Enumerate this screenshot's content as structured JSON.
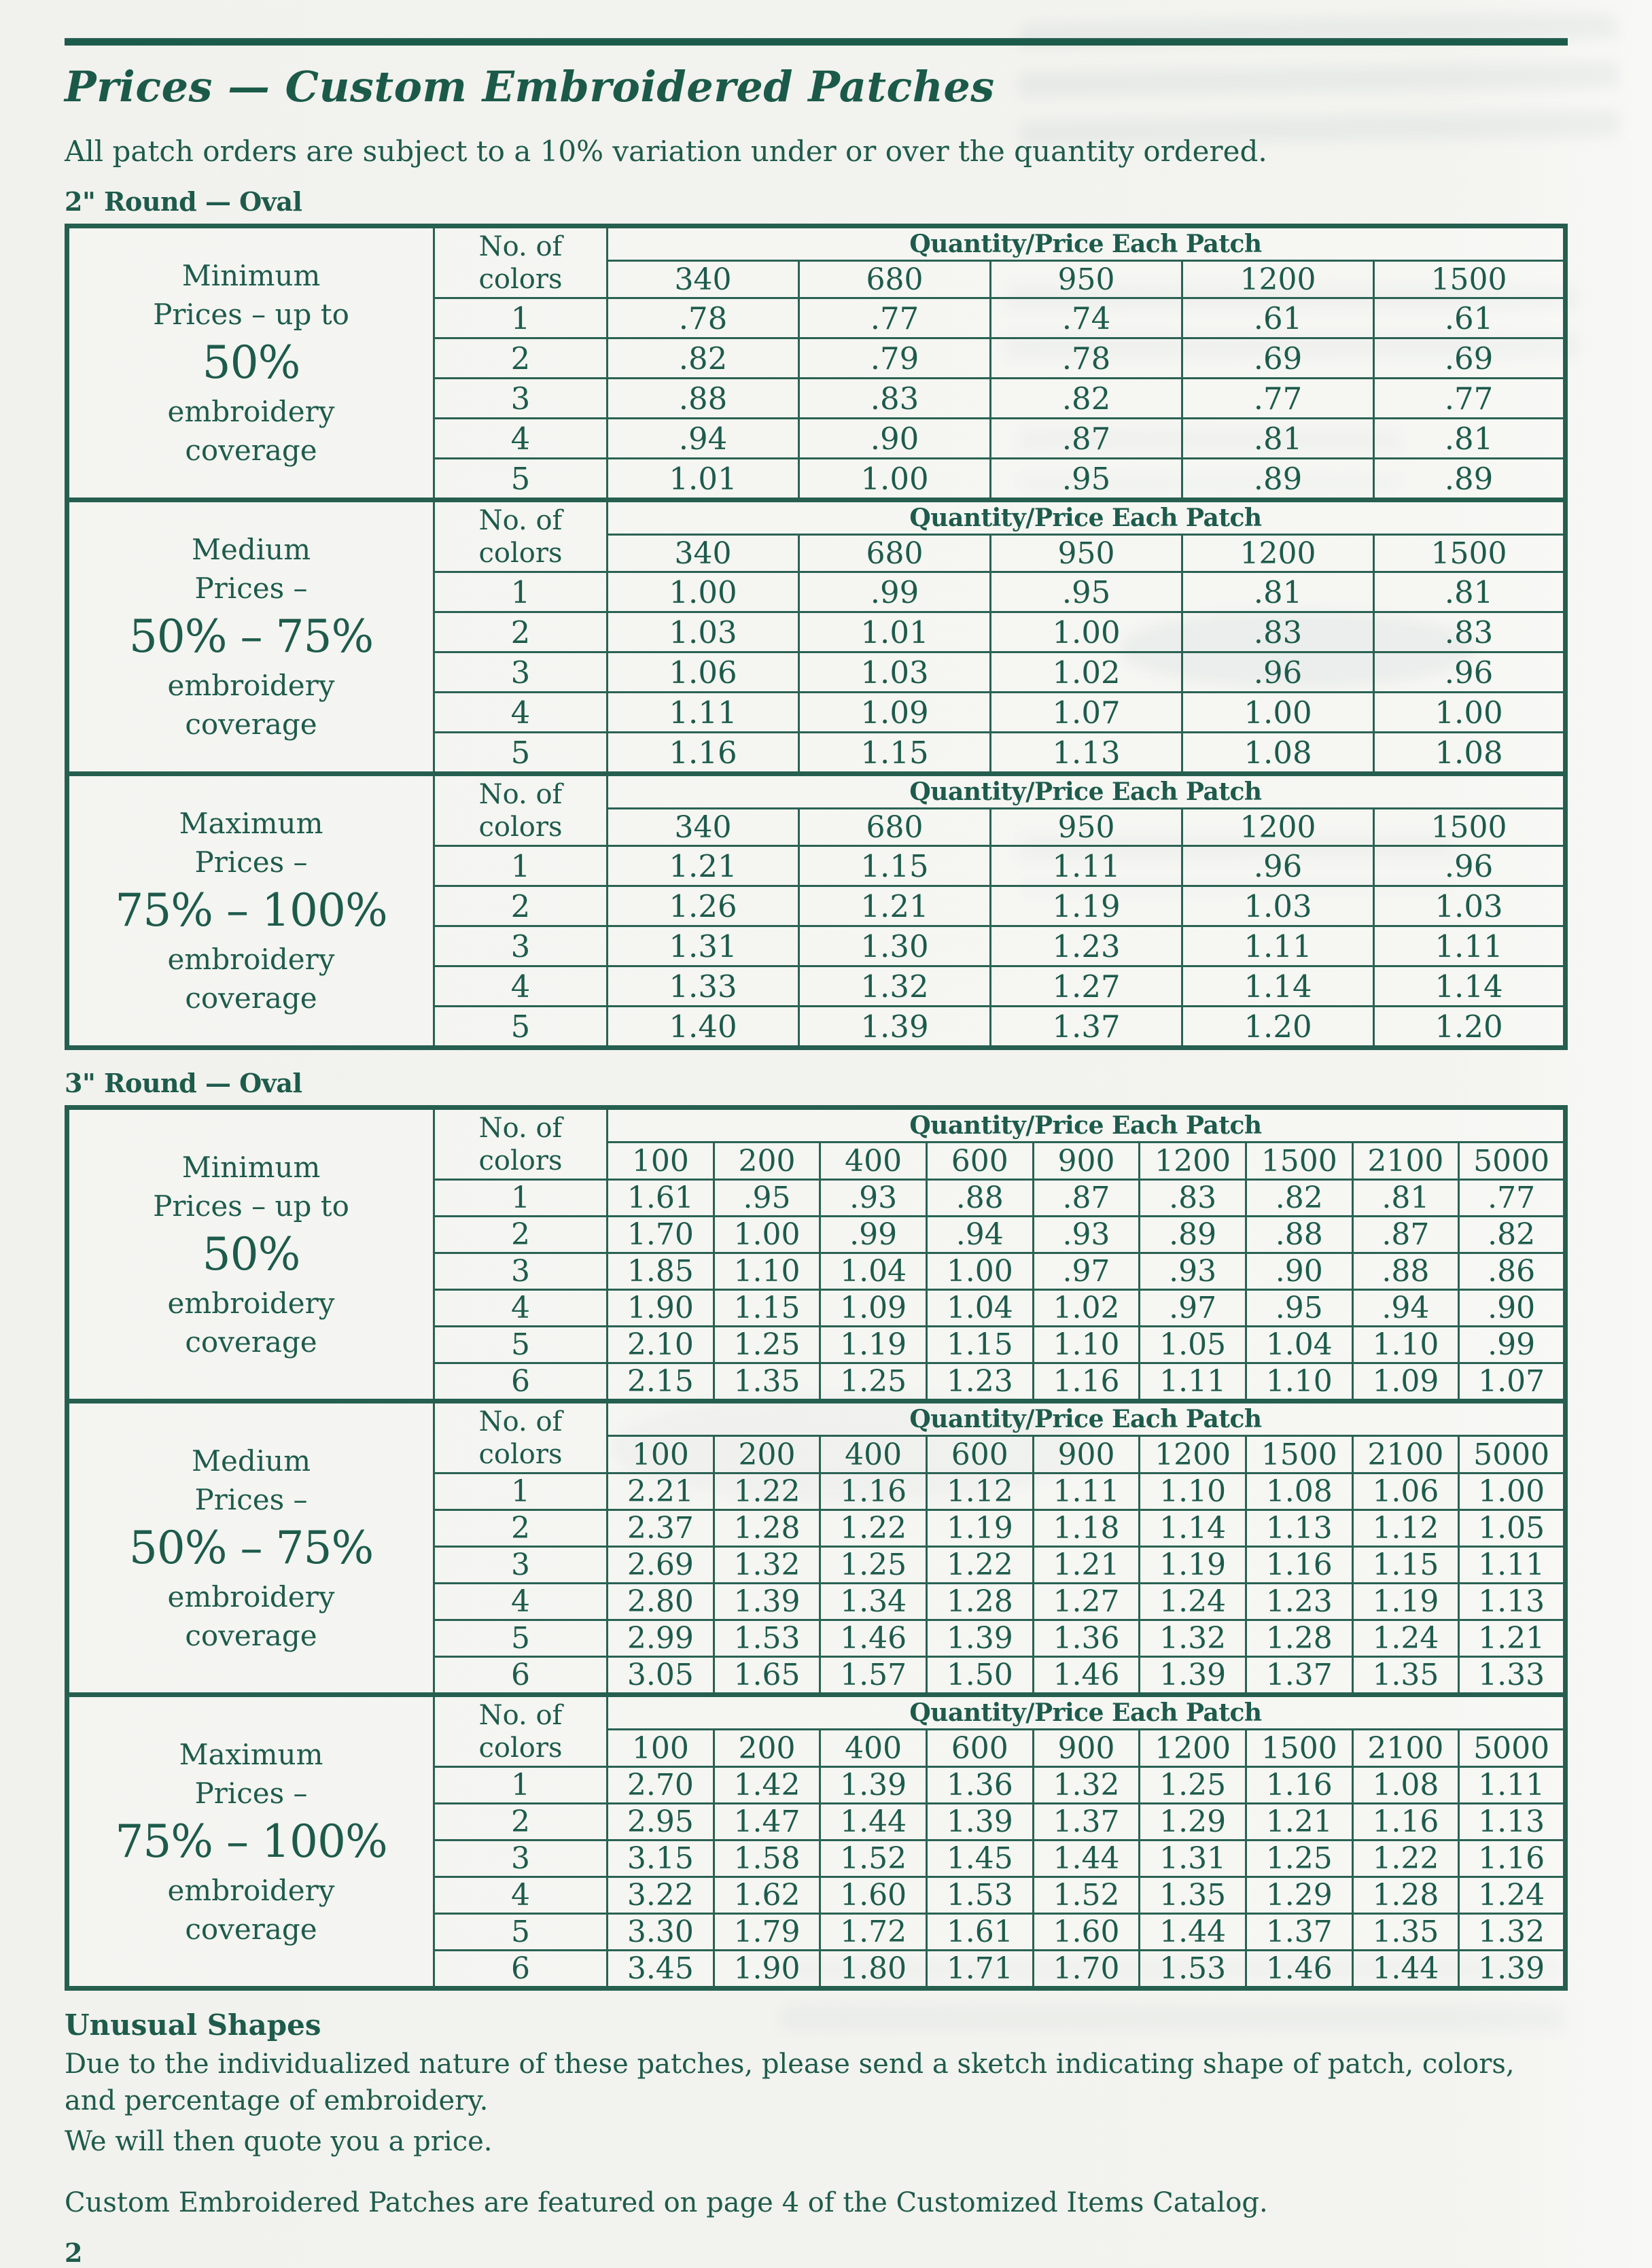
{
  "page": {
    "title": "Prices — Custom Embroidered Patches",
    "subtitle": "All patch orders are subject to a 10% variation under or over the quantity ordered.",
    "page_number": "2"
  },
  "footer": {
    "heading": "Unusual Shapes",
    "body_line1": "Due to the individualized nature of these patches, please send a sketch indicating shape of patch, colors, and percentage of embroidery.",
    "body_line2": "We will then quote you a price.",
    "note": "Custom Embroidered Patches are featured on page 4 of the Customized Items Catalog."
  },
  "colors": {
    "ink_green": "#1d5b4b",
    "border_green": "#2a6253",
    "paper": "#f3f3ef"
  },
  "chart_data": [
    {
      "type": "table",
      "title": "2\" Round — Oval",
      "colors_header": [
        "No. of",
        "colors"
      ],
      "quantity_header": "Quantity/Price Each Patch",
      "quantities": [
        "340",
        "680",
        "950",
        "1200",
        "1500"
      ],
      "tiers": [
        {
          "label_top": [
            "Minimum",
            "Prices – up to"
          ],
          "label_big": "50%",
          "label_bottom": [
            "embroidery",
            "coverage"
          ],
          "rows": [
            {
              "colors": "1",
              "prices": [
                ".78",
                ".77",
                ".74",
                ".61",
                ".61"
              ]
            },
            {
              "colors": "2",
              "prices": [
                ".82",
                ".79",
                ".78",
                ".69",
                ".69"
              ]
            },
            {
              "colors": "3",
              "prices": [
                ".88",
                ".83",
                ".82",
                ".77",
                ".77"
              ]
            },
            {
              "colors": "4",
              "prices": [
                ".94",
                ".90",
                ".87",
                ".81",
                ".81"
              ]
            },
            {
              "colors": "5",
              "prices": [
                "1.01",
                "1.00",
                ".95",
                ".89",
                ".89"
              ]
            }
          ]
        },
        {
          "label_top": [
            "Medium",
            "Prices –"
          ],
          "label_big": "50% – 75%",
          "label_bottom": [
            "embroidery",
            "coverage"
          ],
          "rows": [
            {
              "colors": "1",
              "prices": [
                "1.00",
                ".99",
                ".95",
                ".81",
                ".81"
              ]
            },
            {
              "colors": "2",
              "prices": [
                "1.03",
                "1.01",
                "1.00",
                ".83",
                ".83"
              ]
            },
            {
              "colors": "3",
              "prices": [
                "1.06",
                "1.03",
                "1.02",
                ".96",
                ".96"
              ]
            },
            {
              "colors": "4",
              "prices": [
                "1.11",
                "1.09",
                "1.07",
                "1.00",
                "1.00"
              ]
            },
            {
              "colors": "5",
              "prices": [
                "1.16",
                "1.15",
                "1.13",
                "1.08",
                "1.08"
              ]
            }
          ]
        },
        {
          "label_top": [
            "Maximum",
            "Prices –"
          ],
          "label_big": "75% – 100%",
          "label_bottom": [
            "embroidery",
            "coverage"
          ],
          "rows": [
            {
              "colors": "1",
              "prices": [
                "1.21",
                "1.15",
                "1.11",
                ".96",
                ".96"
              ]
            },
            {
              "colors": "2",
              "prices": [
                "1.26",
                "1.21",
                "1.19",
                "1.03",
                "1.03"
              ]
            },
            {
              "colors": "3",
              "prices": [
                "1.31",
                "1.30",
                "1.23",
                "1.11",
                "1.11"
              ]
            },
            {
              "colors": "4",
              "prices": [
                "1.33",
                "1.32",
                "1.27",
                "1.14",
                "1.14"
              ]
            },
            {
              "colors": "5",
              "prices": [
                "1.40",
                "1.39",
                "1.37",
                "1.20",
                "1.20"
              ]
            }
          ]
        }
      ]
    },
    {
      "type": "table",
      "title": "3\" Round — Oval",
      "colors_header": [
        "No. of",
        "colors"
      ],
      "quantity_header": "Quantity/Price Each Patch",
      "quantities": [
        "100",
        "200",
        "400",
        "600",
        "900",
        "1200",
        "1500",
        "2100",
        "5000"
      ],
      "tiers": [
        {
          "label_top": [
            "Minimum",
            "Prices – up to"
          ],
          "label_big": "50%",
          "label_bottom": [
            "embroidery",
            "coverage"
          ],
          "rows": [
            {
              "colors": "1",
              "prices": [
                "1.61",
                ".95",
                ".93",
                ".88",
                ".87",
                ".83",
                ".82",
                ".81",
                ".77"
              ]
            },
            {
              "colors": "2",
              "prices": [
                "1.70",
                "1.00",
                ".99",
                ".94",
                ".93",
                ".89",
                ".88",
                ".87",
                ".82"
              ]
            },
            {
              "colors": "3",
              "prices": [
                "1.85",
                "1.10",
                "1.04",
                "1.00",
                ".97",
                ".93",
                ".90",
                ".88",
                ".86"
              ]
            },
            {
              "colors": "4",
              "prices": [
                "1.90",
                "1.15",
                "1.09",
                "1.04",
                "1.02",
                ".97",
                ".95",
                ".94",
                ".90"
              ]
            },
            {
              "colors": "5",
              "prices": [
                "2.10",
                "1.25",
                "1.19",
                "1.15",
                "1.10",
                "1.05",
                "1.04",
                "1.10",
                ".99"
              ]
            },
            {
              "colors": "6",
              "prices": [
                "2.15",
                "1.35",
                "1.25",
                "1.23",
                "1.16",
                "1.11",
                "1.10",
                "1.09",
                "1.07"
              ]
            }
          ]
        },
        {
          "label_top": [
            "Medium",
            "Prices –"
          ],
          "label_big": "50% – 75%",
          "label_bottom": [
            "embroidery",
            "coverage"
          ],
          "rows": [
            {
              "colors": "1",
              "prices": [
                "2.21",
                "1.22",
                "1.16",
                "1.12",
                "1.11",
                "1.10",
                "1.08",
                "1.06",
                "1.00"
              ]
            },
            {
              "colors": "2",
              "prices": [
                "2.37",
                "1.28",
                "1.22",
                "1.19",
                "1.18",
                "1.14",
                "1.13",
                "1.12",
                "1.05"
              ]
            },
            {
              "colors": "3",
              "prices": [
                "2.69",
                "1.32",
                "1.25",
                "1.22",
                "1.21",
                "1.19",
                "1.16",
                "1.15",
                "1.11"
              ]
            },
            {
              "colors": "4",
              "prices": [
                "2.80",
                "1.39",
                "1.34",
                "1.28",
                "1.27",
                "1.24",
                "1.23",
                "1.19",
                "1.13"
              ]
            },
            {
              "colors": "5",
              "prices": [
                "2.99",
                "1.53",
                "1.46",
                "1.39",
                "1.36",
                "1.32",
                "1.28",
                "1.24",
                "1.21"
              ]
            },
            {
              "colors": "6",
              "prices": [
                "3.05",
                "1.65",
                "1.57",
                "1.50",
                "1.46",
                "1.39",
                "1.37",
                "1.35",
                "1.33"
              ]
            }
          ]
        },
        {
          "label_top": [
            "Maximum",
            "Prices –"
          ],
          "label_big": "75% – 100%",
          "label_bottom": [
            "embroidery",
            "coverage"
          ],
          "rows": [
            {
              "colors": "1",
              "prices": [
                "2.70",
                "1.42",
                "1.39",
                "1.36",
                "1.32",
                "1.25",
                "1.16",
                "1.08",
                "1.11"
              ]
            },
            {
              "colors": "2",
              "prices": [
                "2.95",
                "1.47",
                "1.44",
                "1.39",
                "1.37",
                "1.29",
                "1.21",
                "1.16",
                "1.13"
              ]
            },
            {
              "colors": "3",
              "prices": [
                "3.15",
                "1.58",
                "1.52",
                "1.45",
                "1.44",
                "1.31",
                "1.25",
                "1.22",
                "1.16"
              ]
            },
            {
              "colors": "4",
              "prices": [
                "3.22",
                "1.62",
                "1.60",
                "1.53",
                "1.52",
                "1.35",
                "1.29",
                "1.28",
                "1.24"
              ]
            },
            {
              "colors": "5",
              "prices": [
                "3.30",
                "1.79",
                "1.72",
                "1.61",
                "1.60",
                "1.44",
                "1.37",
                "1.35",
                "1.32"
              ]
            },
            {
              "colors": "6",
              "prices": [
                "3.45",
                "1.90",
                "1.80",
                "1.71",
                "1.70",
                "1.53",
                "1.46",
                "1.44",
                "1.39"
              ]
            }
          ]
        }
      ]
    }
  ]
}
